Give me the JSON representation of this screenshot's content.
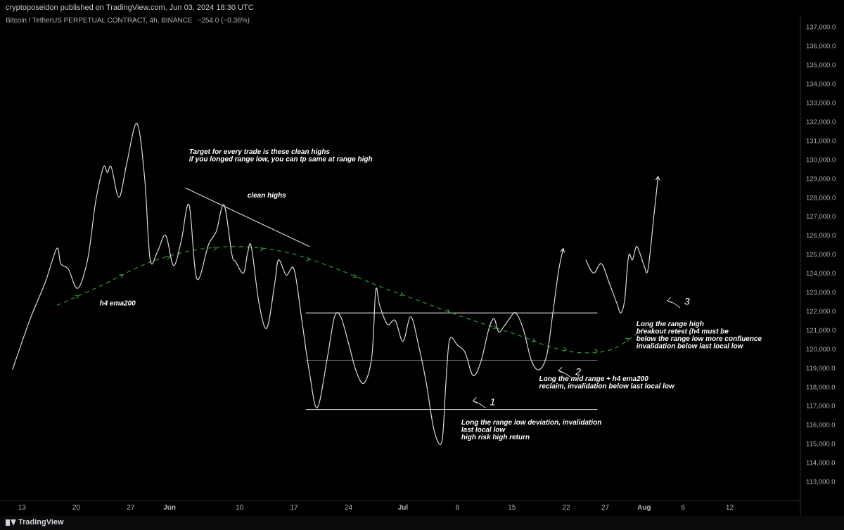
{
  "header": {
    "publisher": "cryptoposeidon published on TradingView.com, Jun 03, 2024 18:30 UTC",
    "symbol": "Bitcoin / TetherUS PERPETUAL CONTRACT, 4h, BINANCE",
    "change": "−254.0 (−0.36%)"
  },
  "footer": {
    "brand": "TradingView"
  },
  "chart_data": {
    "type": "line",
    "title": "",
    "xlabel": "",
    "ylabel": "",
    "ylim": [
      112000,
      137600
    ],
    "y_ticks": [
      113000,
      114000,
      115000,
      116000,
      117000,
      118000,
      119000,
      120000,
      121000,
      122000,
      123000,
      124000,
      125000,
      126000,
      127000,
      128000,
      129000,
      130000,
      131000,
      132000,
      133000,
      134000,
      135000,
      136000,
      137000
    ],
    "y_tick_labels": [
      "113,000.0",
      "114,000.0",
      "115,000.0",
      "116,000.0",
      "117,000.0",
      "118,000.0",
      "119,000.0",
      "120,000.0",
      "121,000.0",
      "122,000.0",
      "123,000.0",
      "124,000.0",
      "125,000.0",
      "126,000.0",
      "127,000.0",
      "128,000.0",
      "129,000.0",
      "130,000.0",
      "131,000.0",
      "132,000.0",
      "133,000.0",
      "134,000.0",
      "135,000.0",
      "136,000.0",
      "137,000.0"
    ],
    "x_ticks": [
      {
        "label": "13",
        "day": 0
      },
      {
        "label": "20",
        "day": 7
      },
      {
        "label": "27",
        "day": 14
      },
      {
        "label": "Jun",
        "day": 19
      },
      {
        "label": "10",
        "day": 28
      },
      {
        "label": "17",
        "day": 35
      },
      {
        "label": "24",
        "day": 42
      },
      {
        "label": "Jul",
        "day": 49
      },
      {
        "label": "8",
        "day": 56
      },
      {
        "label": "15",
        "day": 63
      },
      {
        "label": "22",
        "day": 70
      },
      {
        "label": "27",
        "day": 75
      },
      {
        "label": "Aug",
        "day": 80
      },
      {
        "label": "6",
        "day": 85
      },
      {
        "label": "12",
        "day": 91
      }
    ],
    "x_bold_labels": [
      "Jun",
      "Jul",
      "Aug"
    ],
    "series": [
      {
        "color": "#d9d9d9",
        "segments": [
          [
            [
              -1.2,
              118900
            ],
            [
              1,
              121500
            ],
            [
              3,
              123500
            ],
            [
              4.5,
              125300
            ],
            [
              5,
              124500
            ],
            [
              6,
              124200
            ],
            [
              7.2,
              123200
            ],
            [
              8.5,
              124800
            ],
            [
              9.5,
              127800
            ],
            [
              10.5,
              129600
            ],
            [
              11,
              129300
            ],
            [
              11.5,
              129600
            ],
            [
              12.5,
              128000
            ],
            [
              13.5,
              129800
            ],
            [
              14.8,
              131900
            ],
            [
              15.8,
              129000
            ],
            [
              16.5,
              124700
            ],
            [
              17.5,
              125200
            ],
            [
              18.5,
              126000
            ],
            [
              19.5,
              124400
            ],
            [
              20.5,
              125700
            ],
            [
              21.5,
              127600
            ],
            [
              22.5,
              123700
            ],
            [
              24,
              125500
            ],
            [
              25,
              126200
            ],
            [
              26,
              127600
            ],
            [
              27,
              125000
            ],
            [
              27.5,
              124600
            ],
            [
              28.5,
              124000
            ],
            [
              29,
              125000
            ],
            [
              29.5,
              125400
            ],
            [
              30.5,
              122400
            ],
            [
              31.5,
              121100
            ],
            [
              32.5,
              123400
            ],
            [
              33,
              124700
            ],
            [
              34,
              123900
            ],
            [
              35,
              124200
            ],
            [
              36,
              121500
            ],
            [
              37,
              118700
            ],
            [
              38,
              116900
            ],
            [
              39.3,
              119600
            ],
            [
              40.2,
              121700
            ],
            [
              41,
              121700
            ],
            [
              42,
              120300
            ],
            [
              43,
              118800
            ],
            [
              44,
              118200
            ],
            [
              45,
              119600
            ],
            [
              45.5,
              123100
            ],
            [
              46,
              122300
            ],
            [
              47,
              121300
            ],
            [
              48,
              121500
            ],
            [
              49,
              120400
            ],
            [
              50,
              121700
            ],
            [
              51,
              120200
            ],
            [
              52,
              118200
            ],
            [
              53,
              115700
            ],
            [
              54,
              115100
            ],
            [
              54.5,
              118100
            ],
            [
              55,
              120500
            ],
            [
              56,
              120200
            ],
            [
              57,
              119800
            ],
            [
              58,
              118600
            ],
            [
              59,
              119300
            ],
            [
              60,
              121000
            ],
            [
              60.7,
              121600
            ],
            [
              61.3,
              120900
            ],
            [
              62,
              121200
            ],
            [
              62.7,
              121600
            ],
            [
              63.5,
              121900
            ],
            [
              64.5,
              121000
            ],
            [
              65.5,
              119400
            ],
            [
              66.5,
              118900
            ],
            [
              67.5,
              119700
            ],
            [
              68.3,
              122000
            ],
            [
              69,
              124100
            ],
            [
              69.6,
              125300
            ]
          ],
          [
            [
              72.5,
              124700
            ],
            [
              73.5,
              124000
            ],
            [
              74.5,
              124500
            ],
            [
              75.5,
              123500
            ],
            [
              76.5,
              122400
            ],
            [
              77,
              121900
            ],
            [
              77.5,
              122600
            ],
            [
              78,
              124900
            ],
            [
              78.5,
              124700
            ],
            [
              79,
              125400
            ],
            [
              79.5,
              125000
            ],
            [
              80,
              124400
            ],
            [
              80.5,
              124200
            ],
            [
              81.3,
              127200
            ],
            [
              81.8,
              129100
            ]
          ]
        ]
      }
    ],
    "ema200": {
      "label": "h4 ema200",
      "color": "#2d8a2d",
      "points": [
        [
          4.5,
          122300
        ],
        [
          10,
          123300
        ],
        [
          16,
          124500
        ],
        [
          22,
          125200
        ],
        [
          28,
          125400
        ],
        [
          34,
          125100
        ],
        [
          40,
          124300
        ],
        [
          46,
          123300
        ],
        [
          52,
          122400
        ],
        [
          58,
          121500
        ],
        [
          64,
          120700
        ],
        [
          68,
          120100
        ],
        [
          72,
          119800
        ],
        [
          76,
          120000
        ],
        [
          80,
          121100
        ]
      ]
    },
    "levels": [
      {
        "name": "range-high",
        "value": 121900,
        "from_day": 36.5,
        "to_day": 74
      },
      {
        "name": "mid-range",
        "value": 119400,
        "from_day": 36.5,
        "to_day": 74
      },
      {
        "name": "range-low",
        "value": 116800,
        "from_day": 36.5,
        "to_day": 74
      }
    ],
    "trendline": {
      "from": [
        21,
        128500
      ],
      "to": [
        37,
        125400
      ]
    },
    "annotations": [
      {
        "name": "target-note",
        "lines": [
          "Target for every trade is these clean highs",
          "if you longed range low, you can tp same at range high"
        ],
        "day": 21.5,
        "value": 130300
      },
      {
        "name": "clean-highs-label",
        "lines": [
          "clean highs"
        ],
        "day": 29,
        "value": 128000
      },
      {
        "name": "ema200-label",
        "lines": [
          "h4 ema200"
        ],
        "day": 10,
        "value": 122300
      },
      {
        "name": "trade-1-note",
        "lines": [
          "Long the range low deviation, invalidation",
          "last local low",
          "high risk high return"
        ],
        "day": 56.5,
        "value": 116000
      },
      {
        "name": "trade-2-note",
        "lines": [
          "Long the mid range + h4 ema200",
          "reclaim, invalidation below last local low"
        ],
        "day": 66.5,
        "value": 118300
      },
      {
        "name": "trade-3-note",
        "lines": [
          "Long the range high",
          "breakout retest (h4 must be",
          "below the range low more confluence",
          "invalidation below last local low"
        ],
        "day": 79,
        "value": 121200
      }
    ],
    "markers": [
      {
        "label": "1",
        "day": 58,
        "value": 117100
      },
      {
        "label": "2",
        "day": 69,
        "value": 118700
      },
      {
        "label": "3",
        "day": 83,
        "value": 122400
      }
    ]
  }
}
